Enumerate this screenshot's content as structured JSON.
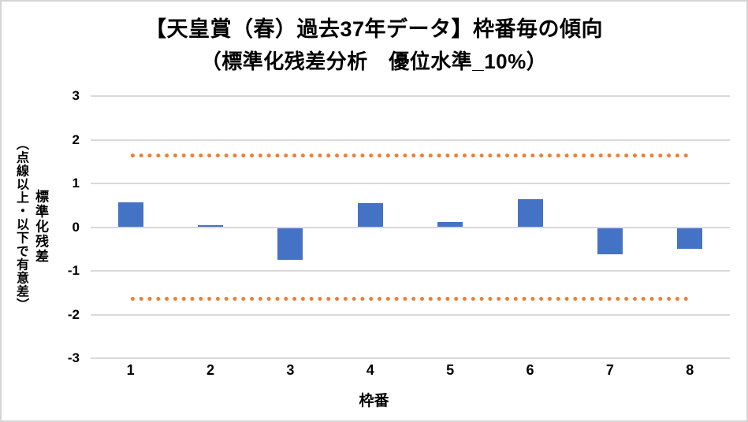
{
  "window": {
    "background": "#FFFFFF",
    "border_color": "#D5D5D5"
  },
  "title": {
    "line1": "【天皇賞（春）過去37年データ】枠番毎の傾向",
    "line2": "（標準化残差分析　優位水準_10%）"
  },
  "y_axis": {
    "title_main": "標準化残差",
    "title_note": "（点線以上・以下で有意差）",
    "tick_labels": [
      "3",
      "2",
      "1",
      "0",
      "-1",
      "-2",
      "-3"
    ]
  },
  "x_axis": {
    "title": "枠番",
    "tick_labels": [
      "1",
      "2",
      "3",
      "4",
      "5",
      "6",
      "7",
      "8"
    ]
  },
  "chart_data": {
    "type": "bar",
    "title": "【天皇賞（春）過去37年データ】枠番毎の傾向",
    "subtitle": "（標準化残差分析　優位水準_10%）",
    "xlabel": "枠番",
    "ylabel": "標準化残差（点線以上・以下で有意差）",
    "categories": [
      "1",
      "2",
      "3",
      "4",
      "5",
      "6",
      "7",
      "8"
    ],
    "series": [
      {
        "name": "標準化残差",
        "values": [
          0.57,
          0.05,
          -0.73,
          0.55,
          0.11,
          0.64,
          -0.6,
          -0.47
        ]
      }
    ],
    "significance_lines": {
      "upper": 1.645,
      "lower": -1.645,
      "style": "dotted"
    },
    "ylim": [
      -3,
      3
    ],
    "ytick_step": 1,
    "grid": true,
    "legend": false,
    "colors": {
      "bar": "#4472C4",
      "significance_line": "#ED7D31",
      "gridline": "#D9D9D9",
      "zero_line": "#D9D9D9",
      "text": "#000000"
    }
  }
}
